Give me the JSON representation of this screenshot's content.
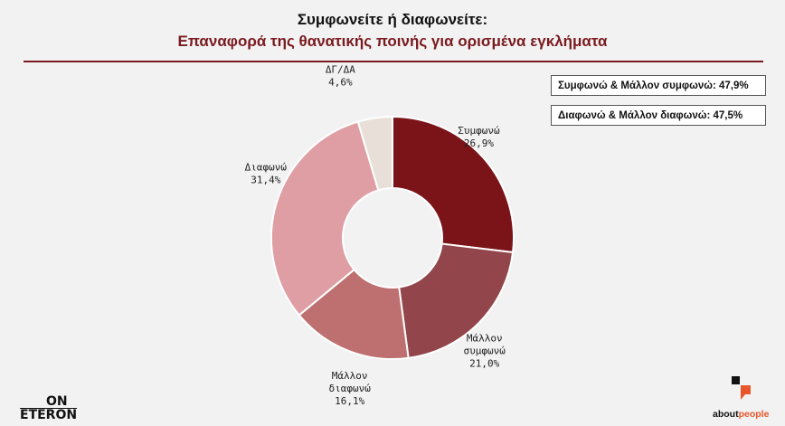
{
  "header": {
    "title": "Συμφωνείτε ή διαφωνείτε:",
    "subtitle": "Επαναφορά της θανατικής ποινής για ορισμένα εγκλήματα"
  },
  "summary": {
    "agree_total": "Συμφωνώ & Μάλλον συμφωνώ: 47,9%",
    "disagree_total": "Διαφωνώ & Μάλλον διαφωνώ: 47,5%"
  },
  "chart_data": {
    "type": "pie",
    "donut": true,
    "categories": [
      "Συμφωνώ",
      "Μάλλον συμφωνώ",
      "Μάλλον διαφωνώ",
      "Διαφωνώ",
      "ΔΓ/ΔΑ"
    ],
    "values": [
      26.9,
      21.0,
      16.1,
      31.4,
      4.6
    ],
    "value_labels": [
      "26,9%",
      "21,0%",
      "16,1%",
      "31,4%",
      "4,6%"
    ],
    "colors": [
      "#7a1418",
      "#92454a",
      "#bd706f",
      "#df9ea4",
      "#e8e0d8"
    ],
    "title": "Συμφωνείτε ή διαφωνείτε:",
    "subtitle": "Επαναφορά της θανατικής ποινής για ορισμένα εγκλήματα"
  },
  "logos": {
    "left_top": "ON",
    "left_bottom": "ETERON",
    "right_bold": "about",
    "right_accent": "people"
  }
}
